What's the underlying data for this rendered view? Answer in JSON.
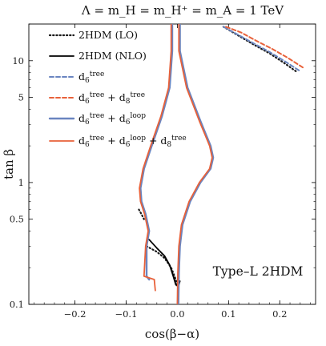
{
  "chart_data": {
    "type": "line",
    "title": "Λ = m_H = m_H⁺ = m_A = 1 TeV",
    "xlabel": "cos(β−α)",
    "ylabel": "tan β",
    "xlim": [
      -0.29,
      0.27
    ],
    "ylim": [
      0.1,
      20
    ],
    "yscale": "log",
    "grid": false,
    "legend_position": "top-left",
    "x_ticks": [
      -0.2,
      -0.1,
      0.0,
      0.1,
      0.2
    ],
    "x_tick_labels": [
      "−0.2",
      "−0.1",
      "0.0",
      "0.1",
      "0.2"
    ],
    "y_ticks": [
      0.1,
      0.5,
      1,
      5,
      10
    ],
    "y_tick_labels": [
      "0.1",
      "0.5",
      "1",
      "5",
      "10"
    ],
    "annotation": "Type–L 2HDM",
    "series": [
      {
        "name": "2HDM (LO)",
        "color": "#1a1a1a",
        "style": "dotted",
        "width": 2.2,
        "segments": [
          [
            [
              0.09,
              19
            ],
            [
              0.12,
              16
            ],
            [
              0.15,
              13.5
            ],
            [
              0.18,
              11.5
            ],
            [
              0.21,
              9.5
            ],
            [
              0.235,
              8.0
            ]
          ],
          [
            [
              -0.06,
              0.3
            ],
            [
              -0.04,
              0.27
            ],
            [
              -0.025,
              0.24
            ],
            [
              -0.012,
              0.2
            ],
            [
              -0.003,
              0.16
            ],
            [
              0.0,
              0.14
            ]
          ],
          [
            [
              -0.075,
              0.6
            ],
            [
              -0.07,
              0.55
            ],
            [
              -0.065,
              0.5
            ]
          ]
        ]
      },
      {
        "name": "2HDM (NLO)",
        "color": "#000000",
        "style": "solid",
        "width": 1.8,
        "segments": [
          [
            [
              -0.055,
              0.34
            ],
            [
              -0.04,
              0.29
            ],
            [
              -0.025,
              0.25
            ],
            [
              -0.015,
              0.21
            ],
            [
              -0.008,
              0.17
            ],
            [
              -0.003,
              0.145
            ],
            [
              0.002,
              0.14
            ],
            [
              0.005,
              0.155
            ]
          ]
        ]
      },
      {
        "name": "d6^tree",
        "label_html": "d<tspan font-size='9' dy='3'>6</tspan><tspan font-size='9' dy='-8'>tree</tspan>",
        "color": "#6a85c0",
        "style": "dashed",
        "width": 2.0,
        "segments": [
          [
            [
              0.09,
              19
            ],
            [
              0.12,
              16.2
            ],
            [
              0.15,
              13.8
            ],
            [
              0.18,
              11.8
            ],
            [
              0.21,
              9.9
            ],
            [
              0.24,
              8.2
            ]
          ]
        ]
      },
      {
        "name": "d6^tree + d8^tree",
        "label_html": "d<tspan font-size='9' dy='3'>6</tspan><tspan font-size='9' dy='-8'>tree</tspan><tspan dy='5'> + d</tspan><tspan font-size='9' dy='3'>8</tspan><tspan font-size='9' dy='-8'>tree</tspan>",
        "color": "#e8613a",
        "style": "dashed",
        "width": 2.0,
        "segments": [
          [
            [
              0.095,
              19
            ],
            [
              0.125,
              17
            ],
            [
              0.155,
              14.5
            ],
            [
              0.185,
              12.5
            ],
            [
              0.215,
              10.6
            ],
            [
              0.245,
              8.8
            ]
          ]
        ]
      },
      {
        "name": "d6^tree + d6^loop",
        "label_html": "d<tspan font-size='9' dy='3'>6</tspan><tspan font-size='9' dy='-8'>tree</tspan><tspan dy='5'> + d</tspan><tspan font-size='9' dy='3'>6</tspan><tspan font-size='9' dy='-8'>loop</tspan>",
        "color": "#6a85c0",
        "style": "solid",
        "width": 2.4,
        "segments": [
          [
            [
              -0.01,
              20
            ],
            [
              -0.01,
              12
            ],
            [
              -0.015,
              6
            ],
            [
              -0.03,
              3.5
            ],
            [
              -0.05,
              2.0
            ],
            [
              -0.065,
              1.3
            ],
            [
              -0.072,
              0.9
            ],
            [
              -0.07,
              0.7
            ],
            [
              -0.062,
              0.55
            ],
            [
              -0.055,
              0.4
            ],
            [
              -0.06,
              0.3
            ],
            [
              -0.06,
              0.17
            ],
            [
              -0.055,
              0.16
            ]
          ],
          [
            [
              0.005,
              20
            ],
            [
              0.005,
              12
            ],
            [
              0.02,
              6
            ],
            [
              0.045,
              3.2
            ],
            [
              0.065,
              2.0
            ],
            [
              0.07,
              1.6
            ],
            [
              0.065,
              1.3
            ],
            [
              0.045,
              1.0
            ],
            [
              0.025,
              0.7
            ],
            [
              0.01,
              0.45
            ],
            [
              0.005,
              0.3
            ],
            [
              0.003,
              0.18
            ],
            [
              0.002,
              0.1
            ]
          ]
        ]
      },
      {
        "name": "d6^tree + d6^loop + d8^tree",
        "label_html": "d<tspan font-size='9' dy='3'>6</tspan><tspan font-size='9' dy='-8'>tree</tspan><tspan dy='5'> + d</tspan><tspan font-size='9' dy='3'>6</tspan><tspan font-size='9' dy='-8'>loop</tspan><tspan dy='5'> + d</tspan><tspan font-size='9' dy='3'>8</tspan><tspan font-size='9' dy='-8'>tree</tspan>",
        "color": "#e8613a",
        "style": "solid",
        "width": 1.8,
        "segments": [
          [
            [
              -0.012,
              20
            ],
            [
              -0.012,
              12
            ],
            [
              -0.017,
              6
            ],
            [
              -0.032,
              3.5
            ],
            [
              -0.052,
              2.0
            ],
            [
              -0.067,
              1.3
            ],
            [
              -0.074,
              0.9
            ],
            [
              -0.072,
              0.7
            ],
            [
              -0.064,
              0.55
            ],
            [
              -0.057,
              0.4
            ],
            [
              -0.062,
              0.3
            ],
            [
              -0.065,
              0.17
            ],
            [
              -0.045,
              0.16
            ],
            [
              -0.043,
              0.13
            ]
          ],
          [
            [
              0.003,
              20
            ],
            [
              0.003,
              12
            ],
            [
              0.018,
              6
            ],
            [
              0.043,
              3.2
            ],
            [
              0.063,
              2.0
            ],
            [
              0.068,
              1.6
            ],
            [
              0.063,
              1.3
            ],
            [
              0.043,
              1.0
            ],
            [
              0.023,
              0.7
            ],
            [
              0.008,
              0.45
            ],
            [
              0.003,
              0.3
            ],
            [
              0.001,
              0.18
            ],
            [
              0.0,
              0.1
            ]
          ]
        ]
      }
    ]
  }
}
